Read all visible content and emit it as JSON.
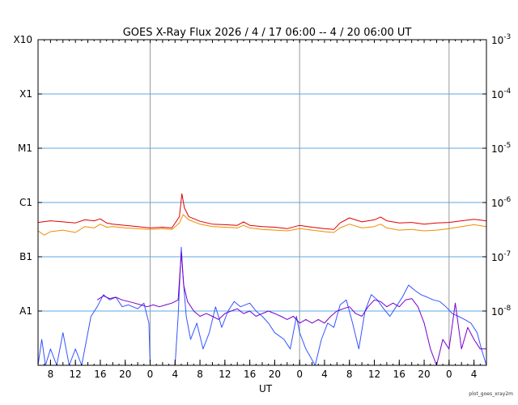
{
  "chart_data": {
    "type": "line",
    "title": "GOES X-Ray Flux   2026 /  4 / 17   06:00 --  4 / 20   06:00   UT",
    "xlabel": "UT",
    "x_range_hours": [
      0,
      72
    ],
    "y_scale": "log",
    "ylim": [
      1e-09,
      0.001
    ],
    "left_axis_labels": [
      {
        "text": "A1",
        "value": 1e-08
      },
      {
        "text": "B1",
        "value": 1e-07
      },
      {
        "text": "C1",
        "value": 1e-06
      },
      {
        "text": "M1",
        "value": 1e-05
      },
      {
        "text": "X1",
        "value": 0.0001
      },
      {
        "text": "X10",
        "value": 0.001
      }
    ],
    "right_axis_labels": [
      {
        "base": "10",
        "exp": "-8",
        "value": 1e-08
      },
      {
        "base": "10",
        "exp": "-7",
        "value": 1e-07
      },
      {
        "base": "10",
        "exp": "-6",
        "value": 1e-06
      },
      {
        "base": "10",
        "exp": "-5",
        "value": 1e-05
      },
      {
        "base": "10",
        "exp": "-4",
        "value": 0.0001
      },
      {
        "base": "10",
        "exp": "-3",
        "value": 0.001
      }
    ],
    "x_ticks": [
      {
        "label": "8",
        "hour": 2
      },
      {
        "label": "12",
        "hour": 6
      },
      {
        "label": "16",
        "hour": 10
      },
      {
        "label": "20",
        "hour": 14
      },
      {
        "label": "0",
        "hour": 18
      },
      {
        "label": "4",
        "hour": 22
      },
      {
        "label": "8",
        "hour": 26
      },
      {
        "label": "12",
        "hour": 30
      },
      {
        "label": "16",
        "hour": 34
      },
      {
        "label": "20",
        "hour": 38
      },
      {
        "label": "0",
        "hour": 42
      },
      {
        "label": "4",
        "hour": 46
      },
      {
        "label": "8",
        "hour": 50
      },
      {
        "label": "12",
        "hour": 54
      },
      {
        "label": "16",
        "hour": 58
      },
      {
        "label": "20",
        "hour": 62
      },
      {
        "label": "0",
        "hour": 66
      },
      {
        "label": "4",
        "hour": 70
      }
    ],
    "day_boundaries_hours": [
      18,
      42,
      66
    ],
    "grid_horizontal": true,
    "series": [
      {
        "color": "#e00000",
        "stroke_width": 1,
        "values": [
          [
            0,
            4.3e-07
          ],
          [
            2,
            4.6e-07
          ],
          [
            4,
            4.4e-07
          ],
          [
            6,
            4.2e-07
          ],
          [
            7.5,
            4.8e-07
          ],
          [
            9,
            4.6e-07
          ],
          [
            10,
            5e-07
          ],
          [
            11,
            4.2e-07
          ],
          [
            12,
            4e-07
          ],
          [
            14,
            3.8e-07
          ],
          [
            16,
            3.6e-07
          ],
          [
            18,
            3.4e-07
          ],
          [
            20,
            3.5e-07
          ],
          [
            21.5,
            3.4e-07
          ],
          [
            22.7,
            5.5e-07
          ],
          [
            23.1,
            1.45e-06
          ],
          [
            23.5,
            8e-07
          ],
          [
            24.2,
            5.5e-07
          ],
          [
            26,
            4.5e-07
          ],
          [
            28,
            4e-07
          ],
          [
            30,
            3.9e-07
          ],
          [
            32,
            3.8e-07
          ],
          [
            33,
            4.4e-07
          ],
          [
            34,
            3.8e-07
          ],
          [
            36,
            3.6e-07
          ],
          [
            38,
            3.5e-07
          ],
          [
            40,
            3.3e-07
          ],
          [
            42,
            3.8e-07
          ],
          [
            44,
            3.5e-07
          ],
          [
            46,
            3.3e-07
          ],
          [
            47.5,
            3.2e-07
          ],
          [
            48.5,
            4.2e-07
          ],
          [
            50,
            5.2e-07
          ],
          [
            52,
            4.4e-07
          ],
          [
            54,
            4.8e-07
          ],
          [
            55,
            5.4e-07
          ],
          [
            56,
            4.6e-07
          ],
          [
            58,
            4.2e-07
          ],
          [
            60,
            4.3e-07
          ],
          [
            62,
            4e-07
          ],
          [
            64,
            4.2e-07
          ],
          [
            66,
            4.3e-07
          ],
          [
            68,
            4.6e-07
          ],
          [
            70,
            4.9e-07
          ],
          [
            72,
            4.6e-07
          ]
        ]
      },
      {
        "color": "#f08c00",
        "stroke_width": 1,
        "values": [
          [
            0,
            3e-07
          ],
          [
            1,
            2.5e-07
          ],
          [
            2,
            2.9e-07
          ],
          [
            4,
            3.1e-07
          ],
          [
            6,
            2.8e-07
          ],
          [
            7.5,
            3.6e-07
          ],
          [
            9,
            3.4e-07
          ],
          [
            10,
            4e-07
          ],
          [
            11,
            3.5e-07
          ],
          [
            12,
            3.6e-07
          ],
          [
            14,
            3.4e-07
          ],
          [
            16,
            3.3e-07
          ],
          [
            18,
            3.2e-07
          ],
          [
            20,
            3.3e-07
          ],
          [
            21.5,
            3.2e-07
          ],
          [
            22.7,
            4.2e-07
          ],
          [
            23.3,
            6e-07
          ],
          [
            24.2,
            4.8e-07
          ],
          [
            26,
            4e-07
          ],
          [
            28,
            3.6e-07
          ],
          [
            30,
            3.5e-07
          ],
          [
            32,
            3.4e-07
          ],
          [
            33,
            3.8e-07
          ],
          [
            34,
            3.4e-07
          ],
          [
            36,
            3.2e-07
          ],
          [
            38,
            3.1e-07
          ],
          [
            40,
            3e-07
          ],
          [
            42,
            3.3e-07
          ],
          [
            44,
            3.1e-07
          ],
          [
            46,
            2.9e-07
          ],
          [
            47.5,
            2.8e-07
          ],
          [
            48.5,
            3.4e-07
          ],
          [
            50,
            4e-07
          ],
          [
            52,
            3.4e-07
          ],
          [
            54,
            3.6e-07
          ],
          [
            55,
            4e-07
          ],
          [
            56,
            3.4e-07
          ],
          [
            58,
            3.1e-07
          ],
          [
            60,
            3.2e-07
          ],
          [
            62,
            3e-07
          ],
          [
            64,
            3.1e-07
          ],
          [
            66,
            3.3e-07
          ],
          [
            68,
            3.6e-07
          ],
          [
            70,
            3.9e-07
          ],
          [
            72,
            3.6e-07
          ]
        ]
      },
      {
        "color": "#3355ff",
        "stroke_width": 1,
        "values": [
          [
            0,
            1e-09
          ],
          [
            0.6,
            3e-09
          ],
          [
            1.2,
            1e-09
          ],
          [
            2,
            2e-09
          ],
          [
            3,
            1e-09
          ],
          [
            4,
            4e-09
          ],
          [
            5,
            1e-09
          ],
          [
            6,
            2e-09
          ],
          [
            7,
            1e-09
          ],
          [
            7.8,
            3e-09
          ],
          [
            8.5,
            8e-09
          ],
          [
            9.5,
            1.2e-08
          ],
          [
            10.5,
            2e-08
          ],
          [
            11.5,
            1.6e-08
          ],
          [
            12.5,
            1.8e-08
          ],
          [
            13.5,
            1.2e-08
          ],
          [
            14.5,
            1.3e-08
          ],
          [
            16,
            1.1e-08
          ],
          [
            17,
            1.4e-08
          ],
          [
            17.8,
            6e-09
          ],
          [
            18,
            1e-09
          ],
          [
            19,
            1e-09
          ],
          [
            20,
            1e-09
          ],
          [
            21,
            1e-09
          ],
          [
            22,
            1e-09
          ],
          [
            22.5,
            8e-09
          ],
          [
            23,
            1.5e-07
          ],
          [
            23.3,
            4e-08
          ],
          [
            23.8,
            8e-09
          ],
          [
            24.5,
            3e-09
          ],
          [
            25.5,
            6e-09
          ],
          [
            26.5,
            2e-09
          ],
          [
            27.5,
            4e-09
          ],
          [
            28.5,
            1.2e-08
          ],
          [
            29.5,
            5e-09
          ],
          [
            30.5,
            1e-08
          ],
          [
            31.5,
            1.5e-08
          ],
          [
            32.5,
            1.2e-08
          ],
          [
            34,
            1.4e-08
          ],
          [
            35,
            1e-08
          ],
          [
            36,
            8e-09
          ],
          [
            37,
            6e-09
          ],
          [
            38,
            4e-09
          ],
          [
            39.5,
            3e-09
          ],
          [
            40.5,
            2e-09
          ],
          [
            41.5,
            8e-09
          ],
          [
            42,
            4e-09
          ],
          [
            43,
            2e-09
          ],
          [
            44.5,
            1e-09
          ],
          [
            45.5,
            3e-09
          ],
          [
            46.5,
            6e-09
          ],
          [
            47.5,
            5e-09
          ],
          [
            48.5,
            1.3e-08
          ],
          [
            49.5,
            1.6e-08
          ],
          [
            50.5,
            6e-09
          ],
          [
            51.5,
            2e-09
          ],
          [
            52.5,
            1e-08
          ],
          [
            53.5,
            2e-08
          ],
          [
            54.5,
            1.6e-08
          ],
          [
            55.5,
            1.1e-08
          ],
          [
            56.5,
            8e-09
          ],
          [
            57.5,
            1.2e-08
          ],
          [
            58.5,
            1.8e-08
          ],
          [
            59.5,
            3e-08
          ],
          [
            60.5,
            2.4e-08
          ],
          [
            61.5,
            2e-08
          ],
          [
            62.5,
            1.8e-08
          ],
          [
            63.5,
            1.6e-08
          ],
          [
            64.5,
            1.5e-08
          ],
          [
            65.5,
            1.2e-08
          ],
          [
            66.5,
            9e-09
          ],
          [
            67.5,
            8e-09
          ],
          [
            68.5,
            7e-09
          ],
          [
            69.5,
            6e-09
          ],
          [
            70.5,
            4e-09
          ],
          [
            71.2,
            2e-09
          ],
          [
            72,
            1e-09
          ]
        ]
      },
      {
        "color": "#7700cc",
        "stroke_width": 1,
        "values": [
          [
            9.5,
            1.6e-08
          ],
          [
            10.5,
            1.9e-08
          ],
          [
            11.5,
            1.7e-08
          ],
          [
            12.5,
            1.8e-08
          ],
          [
            13.5,
            1.6e-08
          ],
          [
            14.5,
            1.5e-08
          ],
          [
            15.5,
            1.4e-08
          ],
          [
            16.5,
            1.3e-08
          ],
          [
            17.5,
            1.2e-08
          ],
          [
            18.5,
            1.3e-08
          ],
          [
            19.5,
            1.2e-08
          ],
          [
            20.5,
            1.3e-08
          ],
          [
            21.5,
            1.4e-08
          ],
          [
            22.5,
            1.6e-08
          ],
          [
            23,
            1.2e-07
          ],
          [
            23.4,
            3e-08
          ],
          [
            24,
            1.5e-08
          ],
          [
            25,
            1e-08
          ],
          [
            26,
            8e-09
          ],
          [
            27,
            9e-09
          ],
          [
            28,
            8e-09
          ],
          [
            29,
            7e-09
          ],
          [
            30,
            9e-09
          ],
          [
            31,
            1e-08
          ],
          [
            32,
            1.1e-08
          ],
          [
            33,
            9e-09
          ],
          [
            34,
            1e-08
          ],
          [
            35,
            8e-09
          ],
          [
            36,
            9e-09
          ],
          [
            37,
            1e-08
          ],
          [
            38,
            9e-09
          ],
          [
            39,
            8e-09
          ],
          [
            40,
            7e-09
          ],
          [
            41,
            8e-09
          ],
          [
            42,
            6e-09
          ],
          [
            43,
            7e-09
          ],
          [
            44,
            6e-09
          ],
          [
            45,
            7e-09
          ],
          [
            46,
            6e-09
          ],
          [
            47,
            8e-09
          ],
          [
            48,
            1e-08
          ],
          [
            49,
            1.1e-08
          ],
          [
            50,
            1.2e-08
          ],
          [
            51,
            9e-09
          ],
          [
            52,
            8e-09
          ],
          [
            53,
            1.2e-08
          ],
          [
            54,
            1.6e-08
          ],
          [
            55,
            1.5e-08
          ],
          [
            56,
            1.2e-08
          ],
          [
            57,
            1.4e-08
          ],
          [
            58,
            1.2e-08
          ],
          [
            59,
            1.6e-08
          ],
          [
            60,
            1.7e-08
          ],
          [
            61,
            1.2e-08
          ],
          [
            62,
            6e-09
          ],
          [
            63,
            2e-09
          ],
          [
            64,
            1e-09
          ],
          [
            65,
            3e-09
          ],
          [
            66,
            2e-09
          ],
          [
            67,
            1.4e-08
          ],
          [
            68,
            2e-09
          ],
          [
            69,
            5e-09
          ],
          [
            70,
            3e-09
          ],
          [
            71,
            2e-09
          ],
          [
            72,
            2e-09
          ]
        ]
      }
    ]
  },
  "credit": "plot_goes_xray2m"
}
